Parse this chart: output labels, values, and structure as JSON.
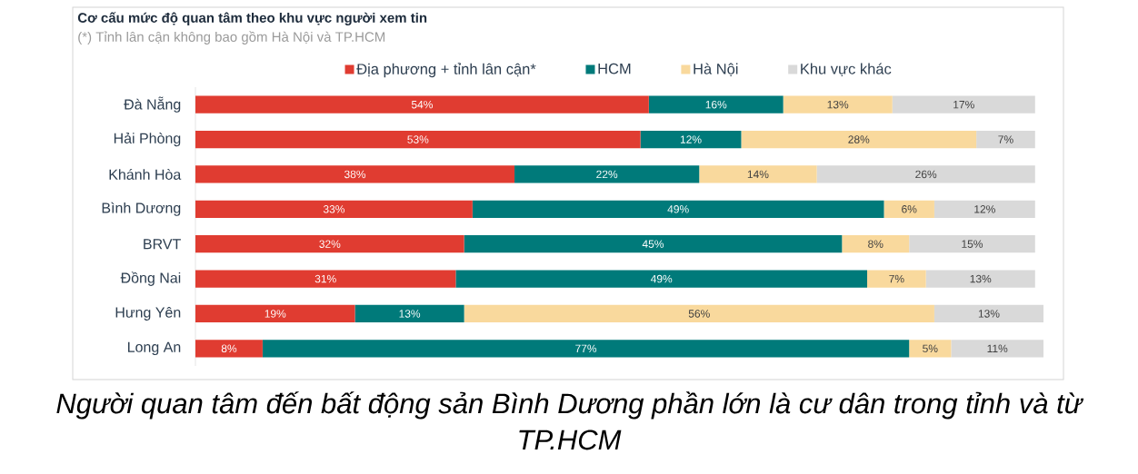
{
  "chart_data": {
    "type": "bar",
    "orientation": "horizontal",
    "stacked": true,
    "title": "Cơ cấu mức độ quan tâm theo khu vực người xem tin",
    "subtitle": "(*) Tỉnh lân cận không bao gồm Hà Nội và TP.HCM",
    "annotations": [
      "Người quan tâm đến bất động sản Bình Dương phần lớn là cư dân trong tỉnh và từ TP.HCM"
    ],
    "categories": [
      "Đà Nẵng",
      "Hải Phòng",
      "Khánh Hòa",
      "Bình Dương",
      "BRVT",
      "Đồng Nai",
      "Hưng Yên",
      "Long An"
    ],
    "series": [
      {
        "name": "Địa phương + tỉnh lân cận*",
        "color": "#e03c31",
        "values": [
          54,
          53,
          38,
          33,
          32,
          31,
          19,
          8
        ],
        "value_labels": [
          "54%",
          "53%",
          "38%",
          "33%",
          "32%",
          "31%",
          "19%",
          "8%"
        ]
      },
      {
        "name": "HCM",
        "color": "#007a7a",
        "values": [
          16,
          12,
          22,
          49,
          45,
          49,
          13,
          77
        ],
        "value_labels": [
          "16%",
          "12%",
          "22%",
          "49%",
          "45%",
          "49%",
          "13%",
          "77%"
        ]
      },
      {
        "name": "Hà Nội",
        "color": "#f9d99d",
        "values": [
          13,
          28,
          14,
          6,
          8,
          7,
          56,
          5
        ],
        "value_labels": [
          "13%",
          "28%",
          "14%",
          "6%",
          "8%",
          "7%",
          "56%",
          "5%"
        ]
      },
      {
        "name": "Khu vực khác",
        "color": "#d9d9d9",
        "values": [
          17,
          7,
          26,
          12,
          15,
          13,
          13,
          11
        ],
        "value_labels": [
          "17%",
          "7%",
          "26%",
          "12%",
          "15%",
          "13%",
          "13%",
          "11%"
        ]
      }
    ],
    "xlim": [
      0,
      101
    ],
    "tick_labels": "y",
    "legend": "top"
  }
}
